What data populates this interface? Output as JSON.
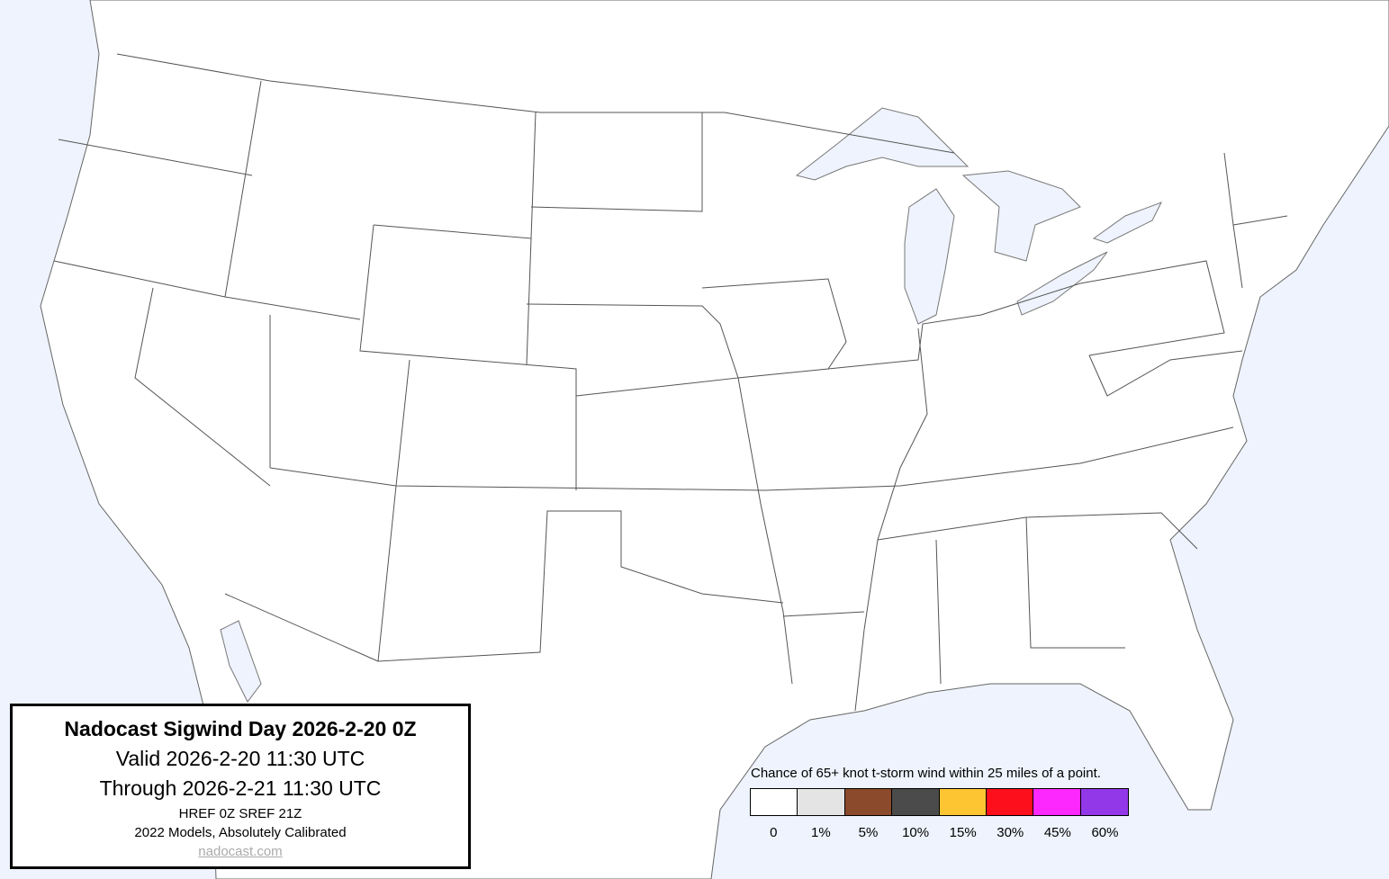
{
  "title_box": {
    "title": "Nadocast Sigwind Day 2026-2-20 0Z",
    "valid": "Valid 2026-2-20 11:30 UTC",
    "through": "Through 2026-2-21 11:30 UTC",
    "models": "HREF 0Z SREF 21Z",
    "calibration": "2022 Models, Absolutely Calibrated",
    "link": "nadocast.com"
  },
  "legend": {
    "title": "Chance of 65+ knot t-storm wind within 25 miles of a point.",
    "items": [
      {
        "label": "0",
        "color": "#ffffff"
      },
      {
        "label": "1%",
        "color": "#e4e4e4"
      },
      {
        "label": "5%",
        "color": "#8b4a2b"
      },
      {
        "label": "10%",
        "color": "#4b4b4b"
      },
      {
        "label": "15%",
        "color": "#fec532"
      },
      {
        "label": "30%",
        "color": "#fd0f1c"
      },
      {
        "label": "45%",
        "color": "#fd28fd"
      },
      {
        "label": "60%",
        "color": "#9238e8"
      }
    ]
  },
  "map": {
    "water_color": "#eef3fd",
    "land_color": "#ffffff",
    "border_color": "#555555"
  }
}
